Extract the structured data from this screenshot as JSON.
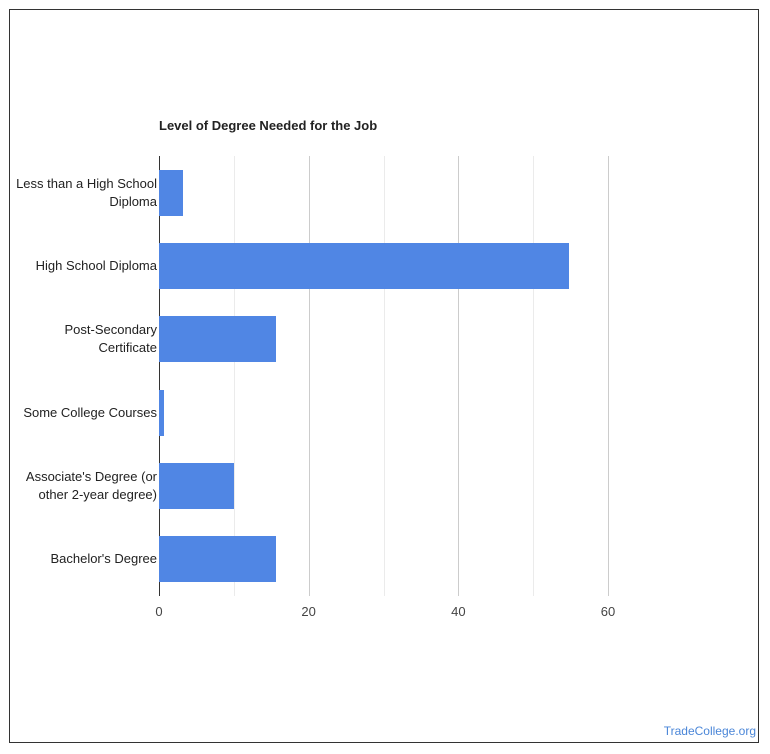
{
  "chart_data": {
    "type": "bar",
    "orientation": "horizontal",
    "title": "Level of Degree Needed for the Job",
    "categories": [
      "Less than a High School Diploma",
      "High School Diploma",
      "Post-Secondary Certificate",
      "Some College Courses",
      "Associate's Degree (or other 2-year degree)",
      "Bachelor's Degree"
    ],
    "values": [
      3.2,
      54.8,
      15.6,
      0.7,
      10.0,
      15.6
    ],
    "color": "#5086e4",
    "xlim": [
      0,
      60
    ],
    "xticks": [
      0,
      20,
      40,
      60
    ],
    "xminor": [
      10,
      30,
      50
    ],
    "grid": true,
    "source": "TradeCollege.org"
  }
}
